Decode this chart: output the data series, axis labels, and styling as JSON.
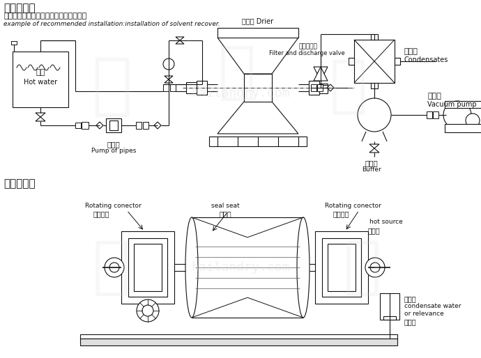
{
  "bg_color": "#ffffff",
  "lc": "#111111",
  "title1": "安装示意图",
  "sub_zh": "推荐的工艺安置示范：溶剂回收工艺安置",
  "sub_en": "example of recommended installation:installation of solvent recover.",
  "title2": "简易结构图",
  "labels": {
    "hot_water_zh": "热水",
    "hot_water_en": "Hot water",
    "pump_zh": "管道泵",
    "pump_en": "Pump of pipes",
    "drier": "干燥机 Drier",
    "filter_zh": "过滤放空阀",
    "filter_en": "Filter and discharge valve",
    "cond_zh": "冷凝器",
    "cond_en": "Condensates",
    "buf_zh": "缓冲罐",
    "buf_en": "Buffer",
    "vac_zh": "真空泵",
    "vac_en": "Vacuum pump",
    "rot1_en": "Rotating conector",
    "rot1_zh": "旋转接头",
    "seal_en": "seal seat",
    "seal_zh": "密封座",
    "rot2_en": "Rotating conector",
    "rot2_zh": "旋转接头",
    "hot_en": "hot source",
    "hot_zh": "进热源",
    "condensate_zh": "冷凝器",
    "condensate_zh2": "或回流",
    "condensate_en": "condensate water",
    "condensate_en2": "or relevance"
  }
}
